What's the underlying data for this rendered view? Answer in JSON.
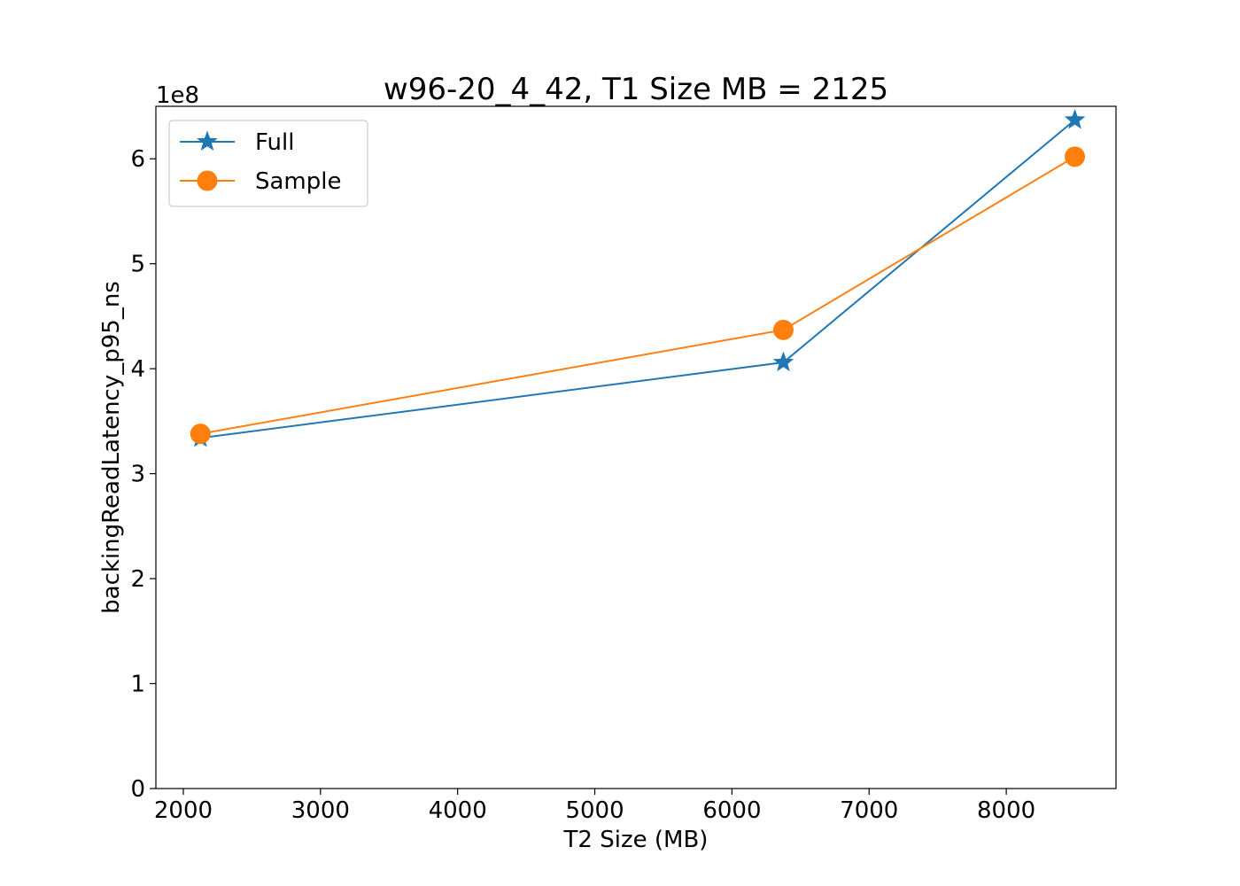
{
  "chart_data": {
    "type": "line",
    "title": "w96-20_4_42, T1 Size MB = 2125",
    "xlabel": "T2 Size (MB)",
    "ylabel": "backingReadLatency_p95_ns",
    "y_multiplier_label": "1e8",
    "xlim": [
      1800,
      8800
    ],
    "ylim": [
      0,
      6.5
    ],
    "x_ticks": [
      2000,
      3000,
      4000,
      5000,
      6000,
      7000,
      8000
    ],
    "y_ticks": [
      0,
      1,
      2,
      3,
      4,
      5,
      6
    ],
    "grid": false,
    "legend_position": "top-left",
    "series": [
      {
        "name": "Full",
        "color": "#1f77b4",
        "marker": "star",
        "x": [
          2125,
          6375,
          8500
        ],
        "y": [
          3.34,
          4.06,
          6.37
        ]
      },
      {
        "name": "Sample",
        "color": "#ff7f0e",
        "marker": "circle",
        "x": [
          2125,
          6375,
          8500
        ],
        "y": [
          3.38,
          4.37,
          6.02
        ]
      }
    ]
  }
}
